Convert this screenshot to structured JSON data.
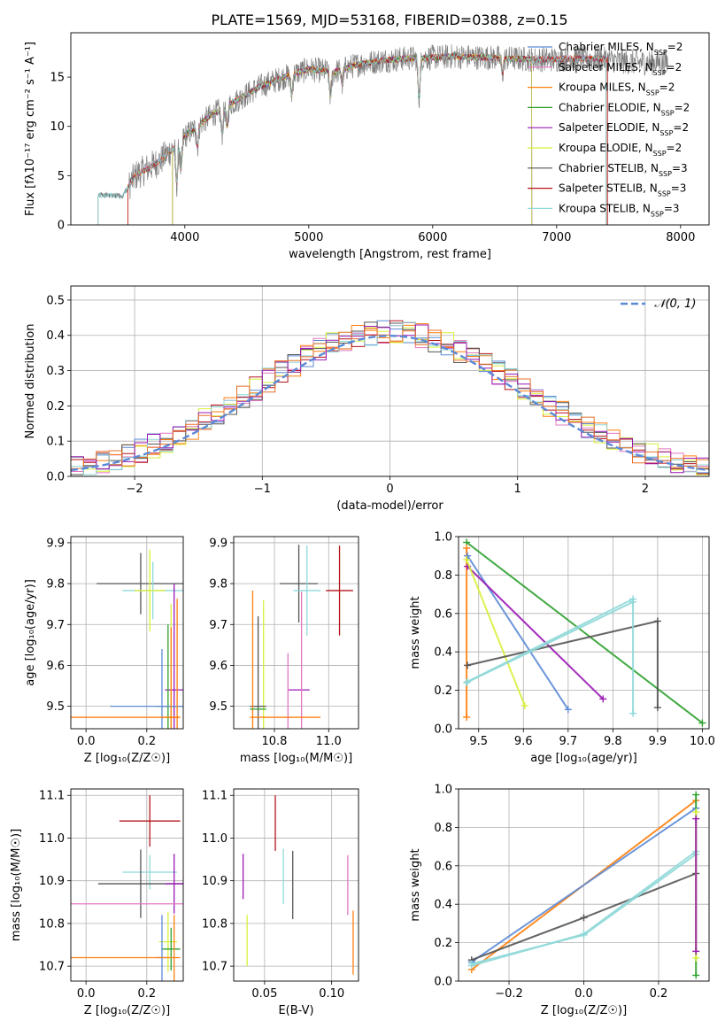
{
  "figure": {
    "title": "PLATE=1569, MJD=53168, FIBERID=0388, z=0.15",
    "colors": {
      "chabrier_miles": "#5b8ad6",
      "salpeter_miles": "#e377c2",
      "kroupa_miles": "#ff7f0e",
      "chabrier_elodie": "#2ca02c",
      "salpeter_elodie": "#9a1ab5",
      "kroupa_elodie": "#d9f03a",
      "chabrier_stelib": "#555555",
      "salpeter_stelib": "#b5151b",
      "kroupa_stelib": "#8fd8d8",
      "orange": "#e8702a",
      "green": "#4c8a5a",
      "grid": "#b0b0b0"
    }
  },
  "chart_data": [
    {
      "id": "spectrum",
      "type": "line",
      "xlabel": "wavelength [Angstrom, rest frame]",
      "ylabel": "Flux [fλ10⁻¹⁷ erg cm⁻² s⁻¹ A⁻¹]",
      "xlim": [
        3080,
        8230
      ],
      "ylim": [
        0,
        19.5
      ],
      "xticks": [
        4000,
        5000,
        6000,
        7000,
        8000
      ],
      "yticks": [
        0,
        5,
        10,
        15
      ],
      "grid": false,
      "legend_position": "top-right",
      "legend": [
        "Chabrier MILES, N_SSP=2",
        "Salpeter MILES, N_SSP=2",
        "Kroupa MILES, N_SSP=2",
        "Chabrier ELODIE, N_SSP=2",
        "Salpeter ELODIE, N_SSP=2",
        "Kroupa ELODIE, N_SSP=2",
        "Chabrier STELIB, N_SSP=3",
        "Salpeter STELIB, N_SSP=3",
        "Kroupa STELIB, N_SSP=3"
      ],
      "continuum": {
        "x": [
          3300,
          3500,
          3600,
          3800,
          4000,
          4200,
          4400,
          4600,
          4800,
          5000,
          5200,
          5400,
          5600,
          5800,
          6000,
          6200,
          6400,
          6600,
          6800,
          7000,
          7200,
          7400,
          7600,
          7800
        ],
        "y": [
          3.0,
          3.0,
          5.0,
          6.5,
          9.0,
          11.0,
          12.5,
          14.0,
          15.0,
          15.8,
          15.5,
          16.3,
          16.7,
          16.9,
          17.0,
          17.1,
          17.0,
          16.9,
          16.8,
          16.8,
          16.9,
          16.8,
          16.5,
          16.5
        ]
      },
      "model_ranges": [
        {
          "series": "Chabrier MILES",
          "x": [
            3540,
            7410
          ]
        },
        {
          "series": "Salpeter MILES",
          "x": [
            3540,
            7410
          ]
        },
        {
          "series": "Kroupa MILES",
          "x": [
            3540,
            7410
          ]
        },
        {
          "series": "Chabrier ELODIE",
          "x": [
            3900,
            6800
          ]
        },
        {
          "series": "Salpeter ELODIE",
          "x": [
            3900,
            6800
          ]
        },
        {
          "series": "Kroupa ELODIE",
          "x": [
            3900,
            6800
          ]
        },
        {
          "series": "Chabrier STELIB",
          "x": [
            3300,
            7400
          ]
        },
        {
          "series": "Salpeter STELIB",
          "x": [
            3540,
            7410
          ]
        },
        {
          "series": "Kroupa STELIB",
          "x": [
            3300,
            7400
          ]
        }
      ]
    },
    {
      "id": "residuals",
      "type": "line",
      "xlabel": "(data-model)/error",
      "ylabel": "Normed distribution",
      "xlim": [
        -2.5,
        2.5
      ],
      "ylim": [
        0,
        0.54
      ],
      "xticks": [
        -2,
        -1,
        0,
        1,
        2
      ],
      "yticks": [
        0.0,
        0.1,
        0.2,
        0.3,
        0.4,
        0.5
      ],
      "grid": true,
      "legend_position": "top-right",
      "legend": [
        "𝒩(0, 1)"
      ],
      "bin_width": 0.1,
      "bin_start": -2.5
    },
    {
      "id": "age_vs_Z",
      "type": "scatter",
      "xlabel": "Z [log₁₀(Z/Z☉)]",
      "ylabel": "age  [log₁₀(age/yr)]",
      "xlim": [
        -0.05,
        0.32
      ],
      "ylim": [
        9.445,
        9.915
      ],
      "xticks": [
        0.0,
        0.2
      ],
      "yticks": [
        9.5,
        9.6,
        9.7,
        9.8,
        9.9
      ],
      "grid": true,
      "points": [
        {
          "x": 0.18,
          "y": 9.8,
          "xerr": 0.145,
          "yerr": 0.075,
          "series": "chabrier_stelib"
        },
        {
          "x": 0.22,
          "y": 9.783,
          "xerr": 0.1,
          "yerr": 0.07,
          "series": "kroupa_stelib"
        },
        {
          "x": 0.21,
          "y": 9.783,
          "xerr": 0.05,
          "yerr": 0.1,
          "series": "kroupa_elodie"
        },
        {
          "x": 0.29,
          "y": 9.54,
          "xerr": 0.03,
          "yerr": 0.26,
          "series": "salpeter_elodie"
        },
        {
          "x": 0.28,
          "y": 9.5,
          "xerr": 0.04,
          "yerr": 0.25,
          "series": "kroupa_elodie"
        },
        {
          "x": 0.27,
          "y": 9.5,
          "xerr": 0.04,
          "yerr": 0.2,
          "series": "chabrier_elodie"
        },
        {
          "x": 0.25,
          "y": 9.5,
          "xerr": 0.17,
          "yerr": 0.14,
          "series": "chabrier_miles"
        },
        {
          "x": 0.28,
          "y": 9.473,
          "xerr": 0.03,
          "yerr": 0.22,
          "series": "kroupa_miles"
        },
        {
          "x": 0.11,
          "y": 9.473,
          "xerr": 0.2,
          "yerr": 0.0,
          "series": "kroupa_miles"
        },
        {
          "x": 0.3,
          "y": 9.473,
          "xerr": 0.0,
          "yerr": 0.29,
          "series": "kroupa_miles"
        }
      ]
    },
    {
      "id": "age_vs_mass",
      "type": "scatter",
      "xlabel": "mass [log₁₀(M/M☉)]",
      "ylabel": "",
      "xlim": [
        10.65,
        11.11
      ],
      "ylim": [
        9.445,
        9.915
      ],
      "xticks": [
        10.8,
        11.0
      ],
      "yticks": [
        9.5,
        9.6,
        9.7,
        9.8,
        9.9
      ],
      "grid": true,
      "points": [
        {
          "x": 10.89,
          "y": 9.8,
          "xerr": 0.07,
          "yerr": 0.095,
          "series": "chabrier_stelib"
        },
        {
          "x": 10.92,
          "y": 9.783,
          "xerr": 0.05,
          "yerr": 0.11,
          "series": "kroupa_stelib"
        },
        {
          "x": 11.04,
          "y": 9.783,
          "xerr": 0.05,
          "yerr": 0.11,
          "series": "salpeter_stelib"
        },
        {
          "x": 10.89,
          "y": 9.54,
          "xerr": 0.04,
          "yerr": 0.0,
          "series": "salpeter_elodie"
        },
        {
          "x": 10.9,
          "y": 9.5,
          "xerr": 0.0,
          "yerr": 0.28,
          "series": "salpeter_miles"
        },
        {
          "x": 10.85,
          "y": 9.5,
          "xerr": 0.0,
          "yerr": 0.13,
          "series": "salpeter_miles"
        },
        {
          "x": 10.76,
          "y": 9.5,
          "xerr": 0.0,
          "yerr": 0.26,
          "series": "kroupa_elodie"
        },
        {
          "x": 10.74,
          "y": 9.5,
          "xerr": 0.03,
          "yerr": 0.22,
          "series": "chabrier_stelib"
        },
        {
          "x": 10.72,
          "y": 9.473,
          "xerr": 0.0,
          "yerr": 0.31,
          "series": "kroupa_miles"
        },
        {
          "x": 10.84,
          "y": 9.473,
          "xerr": 0.13,
          "yerr": 0.0,
          "series": "kroupa_miles"
        },
        {
          "x": 10.74,
          "y": 9.493,
          "xerr": 0.03,
          "yerr": 0.0,
          "series": "chabrier_elodie"
        }
      ]
    },
    {
      "id": "weight_vs_age",
      "type": "line",
      "xlabel": "age  [log₁₀(age/yr)]",
      "ylabel": "mass weight",
      "xlim": [
        9.455,
        10.015
      ],
      "ylim": [
        0.0,
        1.0
      ],
      "xticks": [
        9.5,
        9.6,
        9.7,
        9.8,
        9.9,
        10.0
      ],
      "yticks": [
        0.0,
        0.2,
        0.4,
        0.6,
        0.8,
        1.0
      ],
      "grid": true,
      "series": [
        {
          "name": "chabrier_elodie",
          "x": [
            9.473,
            10.0
          ],
          "y": [
            0.97,
            0.03
          ]
        },
        {
          "name": "kroupa_miles",
          "x": [
            9.473,
            9.473
          ],
          "y": [
            0.94,
            0.06
          ]
        },
        {
          "name": "chabrier_miles",
          "x": [
            9.475,
            9.7
          ],
          "y": [
            0.9,
            0.1
          ]
        },
        {
          "name": "salpeter_elodie",
          "x": [
            9.475,
            9.778
          ],
          "y": [
            0.845,
            0.155
          ]
        },
        {
          "name": "kroupa_elodie",
          "x": [
            9.473,
            9.603
          ],
          "y": [
            0.88,
            0.12
          ]
        },
        {
          "name": "chabrier_stelib",
          "x": [
            9.475,
            9.9,
            9.9
          ],
          "y": [
            0.33,
            0.56,
            0.11
          ]
        },
        {
          "name": "kroupa_stelib",
          "x": [
            9.475,
            9.845,
            9.845
          ],
          "y": [
            0.245,
            0.675,
            0.08
          ]
        },
        {
          "name": "kroupa_stelib",
          "x": [
            9.473,
            9.845
          ],
          "y": [
            0.24,
            0.66
          ]
        }
      ]
    },
    {
      "id": "mass_vs_Z",
      "type": "scatter",
      "xlabel": "Z [log₁₀(Z/Z☉)]",
      "ylabel": "mass [log₁₀(M/M☉)]",
      "xlim": [
        -0.05,
        0.32
      ],
      "ylim": [
        10.665,
        11.115
      ],
      "xticks": [
        0.0,
        0.2
      ],
      "yticks": [
        10.7,
        10.8,
        10.9,
        11.0,
        11.1
      ],
      "grid": true,
      "points": [
        {
          "x": 0.21,
          "y": 11.04,
          "xerr": 0.1,
          "yerr": 0.06,
          "series": "salpeter_stelib"
        },
        {
          "x": 0.21,
          "y": 10.92,
          "xerr": 0.09,
          "yerr": 0.04,
          "series": "kroupa_stelib"
        },
        {
          "x": 0.18,
          "y": 10.893,
          "xerr": 0.14,
          "yerr": 0.08,
          "series": "chabrier_stelib"
        },
        {
          "x": 0.29,
          "y": 10.893,
          "xerr": 0.03,
          "yerr": 0.07,
          "series": "salpeter_elodie"
        },
        {
          "x": 0.2,
          "y": 10.846,
          "xerr": 0.25,
          "yerr": 0.0,
          "series": "salpeter_miles"
        },
        {
          "x": 0.27,
          "y": 10.757,
          "xerr": 0.03,
          "yerr": 0.07,
          "series": "kroupa_elodie"
        },
        {
          "x": 0.28,
          "y": 10.74,
          "xerr": 0.03,
          "yerr": 0.05,
          "series": "chabrier_elodie"
        },
        {
          "x": 0.25,
          "y": 10.72,
          "xerr": 0.02,
          "yerr": 0.1,
          "series": "chabrier_miles"
        },
        {
          "x": 0.09,
          "y": 10.72,
          "xerr": 0.22,
          "yerr": 0.0,
          "series": "kroupa_miles"
        },
        {
          "x": 0.29,
          "y": 10.72,
          "xerr": 0.0,
          "yerr": 0.1,
          "series": "kroupa_miles"
        }
      ]
    },
    {
      "id": "mass_vs_ebv",
      "type": "scatter",
      "xlabel": "E(B-V)",
      "ylabel": "",
      "xlim": [
        0.027,
        0.12
      ],
      "ylim": [
        10.665,
        11.115
      ],
      "xticks": [
        0.05,
        0.1
      ],
      "yticks": [
        10.7,
        10.8,
        10.9,
        11.0,
        11.1
      ],
      "grid": true,
      "points": [
        {
          "x": 0.034,
          "y": 10.91,
          "xerr": 0.0,
          "yerr": 0.053,
          "series": "salpeter_elodie"
        },
        {
          "x": 0.037,
          "y": 10.76,
          "xerr": 0.0,
          "yerr": 0.06,
          "series": "kroupa_elodie"
        },
        {
          "x": 0.058,
          "y": 11.035,
          "xerr": 0.0,
          "yerr": 0.065,
          "series": "salpeter_stelib"
        },
        {
          "x": 0.064,
          "y": 10.91,
          "xerr": 0.0,
          "yerr": 0.065,
          "series": "kroupa_stelib"
        },
        {
          "x": 0.071,
          "y": 10.89,
          "xerr": 0.0,
          "yerr": 0.08,
          "series": "chabrier_stelib"
        },
        {
          "x": 0.112,
          "y": 10.89,
          "xerr": 0.0,
          "yerr": 0.07,
          "series": "salpeter_miles"
        },
        {
          "x": 0.116,
          "y": 10.755,
          "xerr": 0.0,
          "yerr": 0.075,
          "series": "kroupa_miles"
        }
      ]
    },
    {
      "id": "weight_vs_Z",
      "type": "line",
      "xlabel": "Z [log₁₀(Z/Z☉)]",
      "ylabel": "mass weight",
      "xlim": [
        -0.335,
        0.335
      ],
      "ylim": [
        0.0,
        1.0
      ],
      "xticks": [
        -0.2,
        0.0,
        0.2
      ],
      "yticks": [
        0.0,
        0.2,
        0.4,
        0.6,
        0.8,
        1.0
      ],
      "grid": true,
      "series": [
        {
          "name": "kroupa_miles",
          "x": [
            -0.3,
            0.3
          ],
          "y": [
            0.06,
            0.94
          ]
        },
        {
          "name": "chabrier_miles",
          "x": [
            -0.3,
            0.3
          ],
          "y": [
            0.1,
            0.9
          ]
        },
        {
          "name": "chabrier_stelib",
          "x": [
            -0.3,
            0.0,
            0.3
          ],
          "y": [
            0.11,
            0.33,
            0.56
          ]
        },
        {
          "name": "kroupa_stelib",
          "x": [
            -0.3,
            0.0,
            0.3
          ],
          "y": [
            0.08,
            0.245,
            0.675
          ]
        },
        {
          "name": "kroupa_stelib",
          "x": [
            -0.3,
            0.0,
            0.3
          ],
          "y": [
            0.09,
            0.24,
            0.66
          ]
        },
        {
          "name": "chabrier_elodie",
          "x": [
            0.3,
            0.3
          ],
          "y": [
            0.03,
            0.97
          ]
        },
        {
          "name": "kroupa_elodie",
          "x": [
            0.3,
            0.3
          ],
          "y": [
            0.12,
            0.88
          ]
        },
        {
          "name": "salpeter_elodie",
          "x": [
            0.3,
            0.3
          ],
          "y": [
            0.155,
            0.845
          ]
        }
      ]
    }
  ]
}
